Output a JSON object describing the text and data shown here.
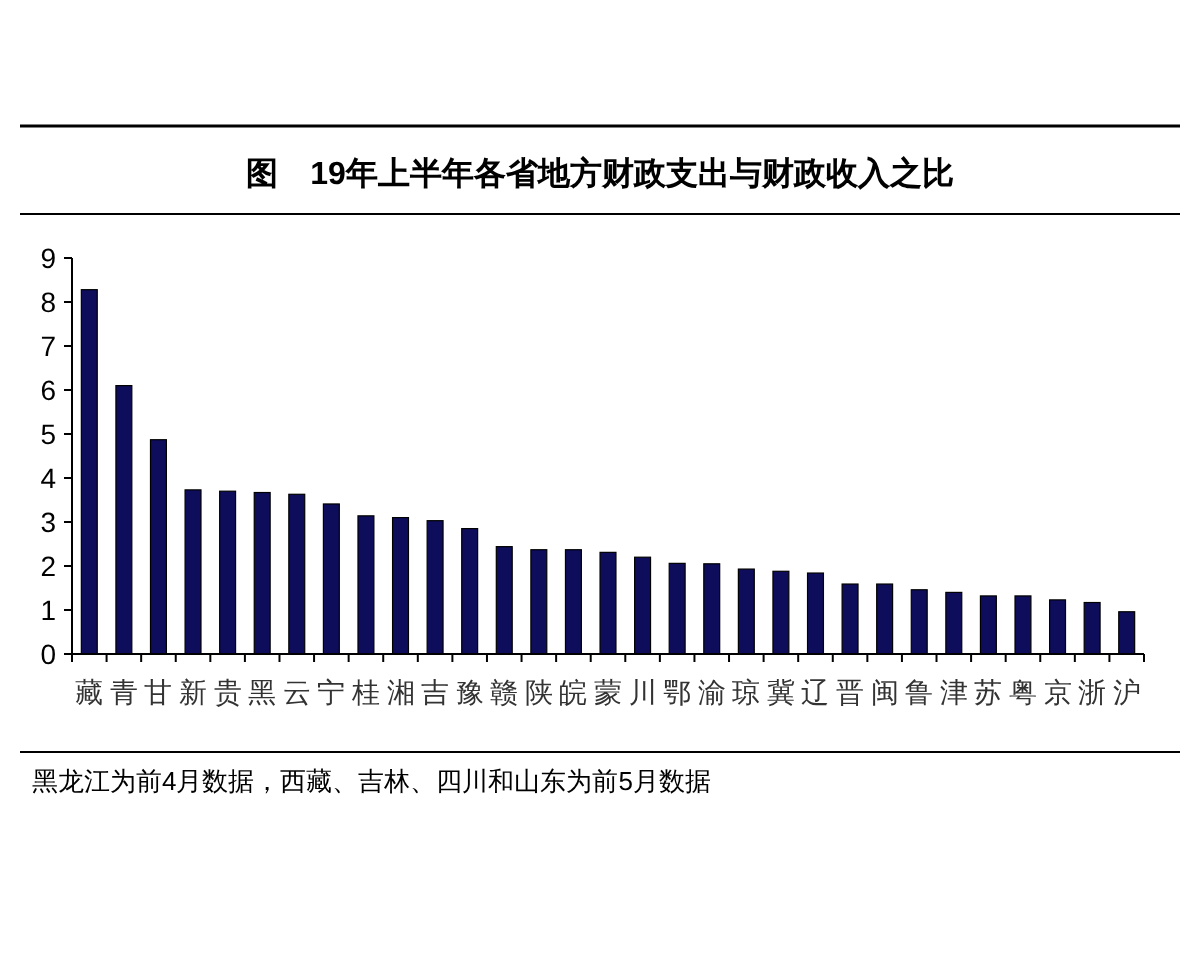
{
  "chart_data": {
    "type": "bar",
    "title": "图　19年上半年各省地方财政支出与财政收入之比",
    "categories": [
      "藏",
      "青",
      "甘",
      "新",
      "贵",
      "黑",
      "云",
      "宁",
      "桂",
      "湘",
      "吉",
      "豫",
      "赣",
      "陕",
      "皖",
      "蒙",
      "川",
      "鄂",
      "渝",
      "琼",
      "冀",
      "辽",
      "晋",
      "闽",
      "鲁",
      "津",
      "苏",
      "粤",
      "京",
      "浙",
      "沪"
    ],
    "values": [
      8.28,
      6.1,
      4.87,
      3.73,
      3.7,
      3.67,
      3.63,
      3.41,
      3.14,
      3.1,
      3.03,
      2.85,
      2.44,
      2.37,
      2.37,
      2.31,
      2.2,
      2.06,
      2.05,
      1.93,
      1.88,
      1.84,
      1.59,
      1.59,
      1.46,
      1.4,
      1.32,
      1.32,
      1.23,
      1.17,
      0.96
    ],
    "color": "#0d0d5c",
    "ylim": [
      0,
      9
    ],
    "yticks": [
      0,
      1,
      2,
      3,
      4,
      5,
      6,
      7,
      8,
      9
    ],
    "annotations": [
      "黑龙江为前4月数据，西藏、吉林、四川和山东为前5月数据"
    ]
  }
}
